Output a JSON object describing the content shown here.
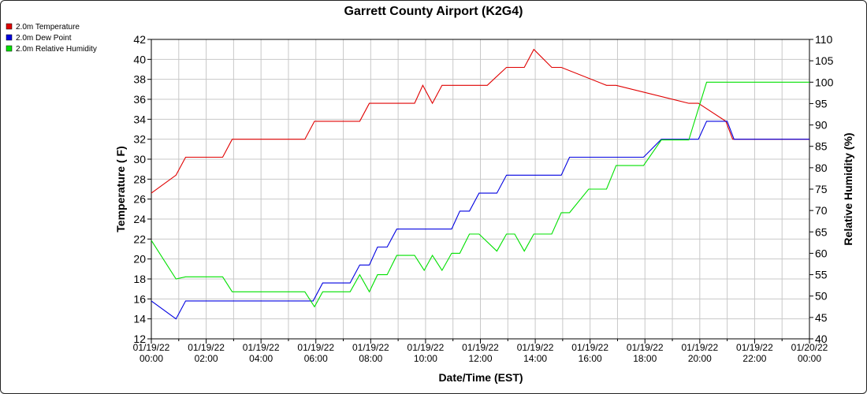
{
  "chart_data": {
    "type": "line",
    "title": "Garrett County Airport (K2G4)",
    "xlabel": "Date/Time (EST)",
    "ylabel": "Temperature ( F)",
    "y2label": "Relative Humidity (%)",
    "xlim": [
      0,
      24
    ],
    "ylim": [
      12,
      42
    ],
    "y2lim": [
      40,
      110
    ],
    "yticks": [
      "12",
      "14",
      "16",
      "18",
      "20",
      "22",
      "24",
      "26",
      "28",
      "30",
      "32",
      "34",
      "36",
      "38",
      "40",
      "42"
    ],
    "y2ticks": [
      "40",
      "45",
      "50",
      "55",
      "60",
      "65",
      "70",
      "75",
      "80",
      "85",
      "90",
      "95",
      "100",
      "105",
      "110"
    ],
    "xticks": [
      {
        "hour": 0,
        "date": "01/19/22",
        "time": "00:00"
      },
      {
        "hour": 2,
        "date": "01/19/22",
        "time": "02:00"
      },
      {
        "hour": 4,
        "date": "01/19/22",
        "time": "04:00"
      },
      {
        "hour": 6,
        "date": "01/19/22",
        "time": "06:00"
      },
      {
        "hour": 8,
        "date": "01/19/22",
        "time": "08:00"
      },
      {
        "hour": 10,
        "date": "01/19/22",
        "time": "10:00"
      },
      {
        "hour": 12,
        "date": "01/19/22",
        "time": "12:00"
      },
      {
        "hour": 14,
        "date": "01/19/22",
        "time": "14:00"
      },
      {
        "hour": 16,
        "date": "01/19/22",
        "time": "16:00"
      },
      {
        "hour": 18,
        "date": "01/19/22",
        "time": "18:00"
      },
      {
        "hour": 20,
        "date": "01/19/22",
        "time": "20:00"
      },
      {
        "hour": 22,
        "date": "01/19/22",
        "time": "22:00"
      },
      {
        "hour": 24,
        "date": "01/20/22",
        "time": "00:00"
      }
    ],
    "grid": true,
    "legend_position": "top-left",
    "series": [
      {
        "name": "2.0m Temperature",
        "color": "#e00000",
        "axis": "left",
        "x": [
          0,
          0.9,
          1.25,
          2.6,
          2.95,
          5.6,
          5.95,
          7.6,
          7.95,
          9.6,
          9.9,
          10.25,
          10.6,
          11.6,
          12.25,
          12.95,
          13.25,
          13.6,
          13.95,
          14.6,
          14.95,
          16.6,
          16.95,
          19.6,
          19.95,
          20.95,
          21.2,
          24
        ],
        "y": [
          26.6,
          28.4,
          30.2,
          30.2,
          32.0,
          32.0,
          33.8,
          33.8,
          35.6,
          35.6,
          37.4,
          35.6,
          37.4,
          37.4,
          37.4,
          39.2,
          39.2,
          39.2,
          41.0,
          39.2,
          39.2,
          37.4,
          37.4,
          35.6,
          35.6,
          33.8,
          32.0,
          32.0
        ]
      },
      {
        "name": "2.0m Dew Point",
        "color": "#0000e0",
        "axis": "left",
        "x": [
          0,
          0.9,
          1.25,
          5.9,
          6.25,
          7.25,
          7.6,
          7.95,
          8.25,
          8.6,
          8.95,
          10.95,
          11.25,
          11.6,
          11.95,
          12.6,
          12.95,
          14.95,
          15.25,
          17.95,
          18.6,
          19.95,
          20.25,
          21.0,
          21.25,
          24
        ],
        "y": [
          15.8,
          14.0,
          15.8,
          15.8,
          17.6,
          17.6,
          19.4,
          19.4,
          21.2,
          21.2,
          23.0,
          23.0,
          24.8,
          24.8,
          26.6,
          26.6,
          28.4,
          28.4,
          30.2,
          30.2,
          32.0,
          32.0,
          33.8,
          33.8,
          32.0,
          32.0
        ]
      },
      {
        "name": "2.0m Relative Humidity",
        "color": "#00e000",
        "axis": "right",
        "x": [
          0,
          0.9,
          1.25,
          2.6,
          2.95,
          5.6,
          5.95,
          6.25,
          7.25,
          7.6,
          7.95,
          8.25,
          8.6,
          8.95,
          9.6,
          9.95,
          10.25,
          10.6,
          10.95,
          11.25,
          11.6,
          11.95,
          12.6,
          12.95,
          13.25,
          13.6,
          13.95,
          14.6,
          14.95,
          15.25,
          15.95,
          16.6,
          16.95,
          17.95,
          18.6,
          19.6,
          20.25,
          24
        ],
        "y": [
          63,
          54,
          54.5,
          54.5,
          51,
          51,
          47.5,
          51,
          51,
          55,
          51,
          55,
          55,
          59.5,
          59.5,
          56,
          59.5,
          56,
          60,
          60,
          64.5,
          64.5,
          60.5,
          64.5,
          64.5,
          60.5,
          64.5,
          64.5,
          69.5,
          69.5,
          75,
          75,
          80.5,
          80.5,
          86.5,
          86.5,
          100,
          100
        ]
      }
    ]
  }
}
